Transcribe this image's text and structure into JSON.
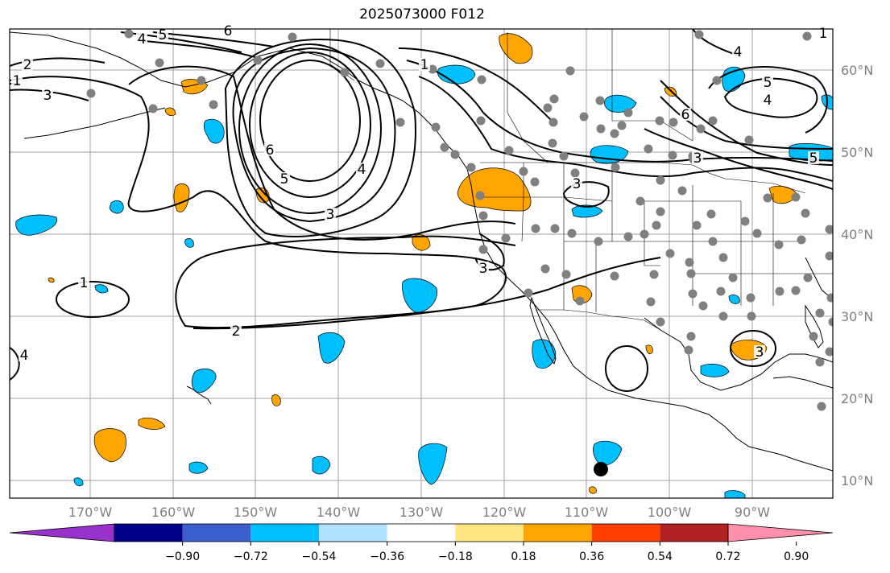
{
  "title": "2025073000 F012",
  "lat_labels": [
    "60°N",
    "50°N",
    "40°N",
    "30°N",
    "20°N",
    "10°N"
  ],
  "lon_labels": [
    "170°W",
    "160°W",
    "150°W",
    "140°W",
    "130°W",
    "120°W",
    "110°W",
    "100°W",
    "90°W"
  ],
  "colorbar": {
    "colors": [
      "#9932cc",
      "#00008b",
      "#3a5fcd",
      "#00bfff",
      "#b0e2ff",
      "#ffffff",
      "#ffe680",
      "#ffa500",
      "#ff4000",
      "#b22222",
      "#ff8fab"
    ],
    "tick_labels": [
      "−0.90",
      "−0.72",
      "−0.54",
      "−0.36",
      "−0.18",
      "0.18",
      "0.36",
      "0.54",
      "0.72",
      "0.90"
    ]
  },
  "contour_labels": [
    "6",
    "5",
    "4",
    "3",
    "2",
    "1",
    "6",
    "5",
    "4",
    "3",
    "3",
    "3",
    "1",
    "5",
    "4",
    "6",
    "4",
    "5",
    "3",
    "1",
    "1",
    "2",
    "3",
    "4"
  ],
  "colors": {
    "land_line": "#000000",
    "grid": "#a0a0a0",
    "station": "#808080",
    "marker": "#000000",
    "blue_fill": "#00bfff",
    "orange_fill": "#ffa500"
  }
}
